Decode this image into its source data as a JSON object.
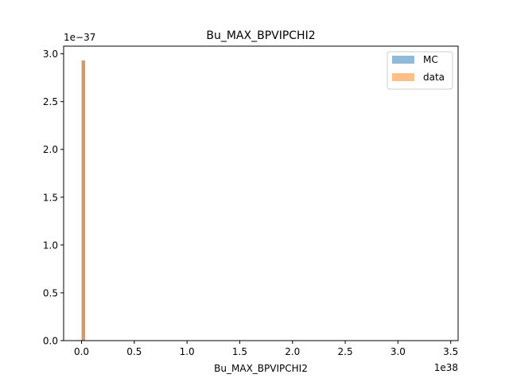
{
  "chart_data": {
    "type": "bar",
    "title": "Bu_MAX_BPVIPCHI2",
    "xlabel": "Bu_MAX_BPVIPCHI2",
    "ylabel": "",
    "x_offset_label": "1e38",
    "y_offset_label": "1e−37",
    "xlim": [
      -0.17,
      3.57
    ],
    "ylim": [
      0,
      3.08
    ],
    "x_ticks": [
      0.0,
      0.5,
      1.0,
      1.5,
      2.0,
      2.5,
      3.0,
      3.5
    ],
    "x_tick_labels": [
      "0.0",
      "0.5",
      "1.0",
      "1.5",
      "2.0",
      "2.5",
      "3.0",
      "3.5"
    ],
    "y_ticks": [
      0.0,
      0.5,
      1.0,
      1.5,
      2.0,
      2.5,
      3.0
    ],
    "y_tick_labels": [
      "0.0",
      "0.5",
      "1.0",
      "1.5",
      "2.0",
      "2.5",
      "3.0"
    ],
    "legend_position": "top-right",
    "series": [
      {
        "name": "MC",
        "color": "#1f77b4",
        "opacity": 0.5,
        "bins": [
          [
            0.0,
            0.034,
            2.93
          ]
        ]
      },
      {
        "name": "data",
        "color": "#ff7f0e",
        "opacity": 0.5,
        "bins": [
          [
            0.0,
            0.034,
            2.93
          ]
        ]
      }
    ]
  }
}
